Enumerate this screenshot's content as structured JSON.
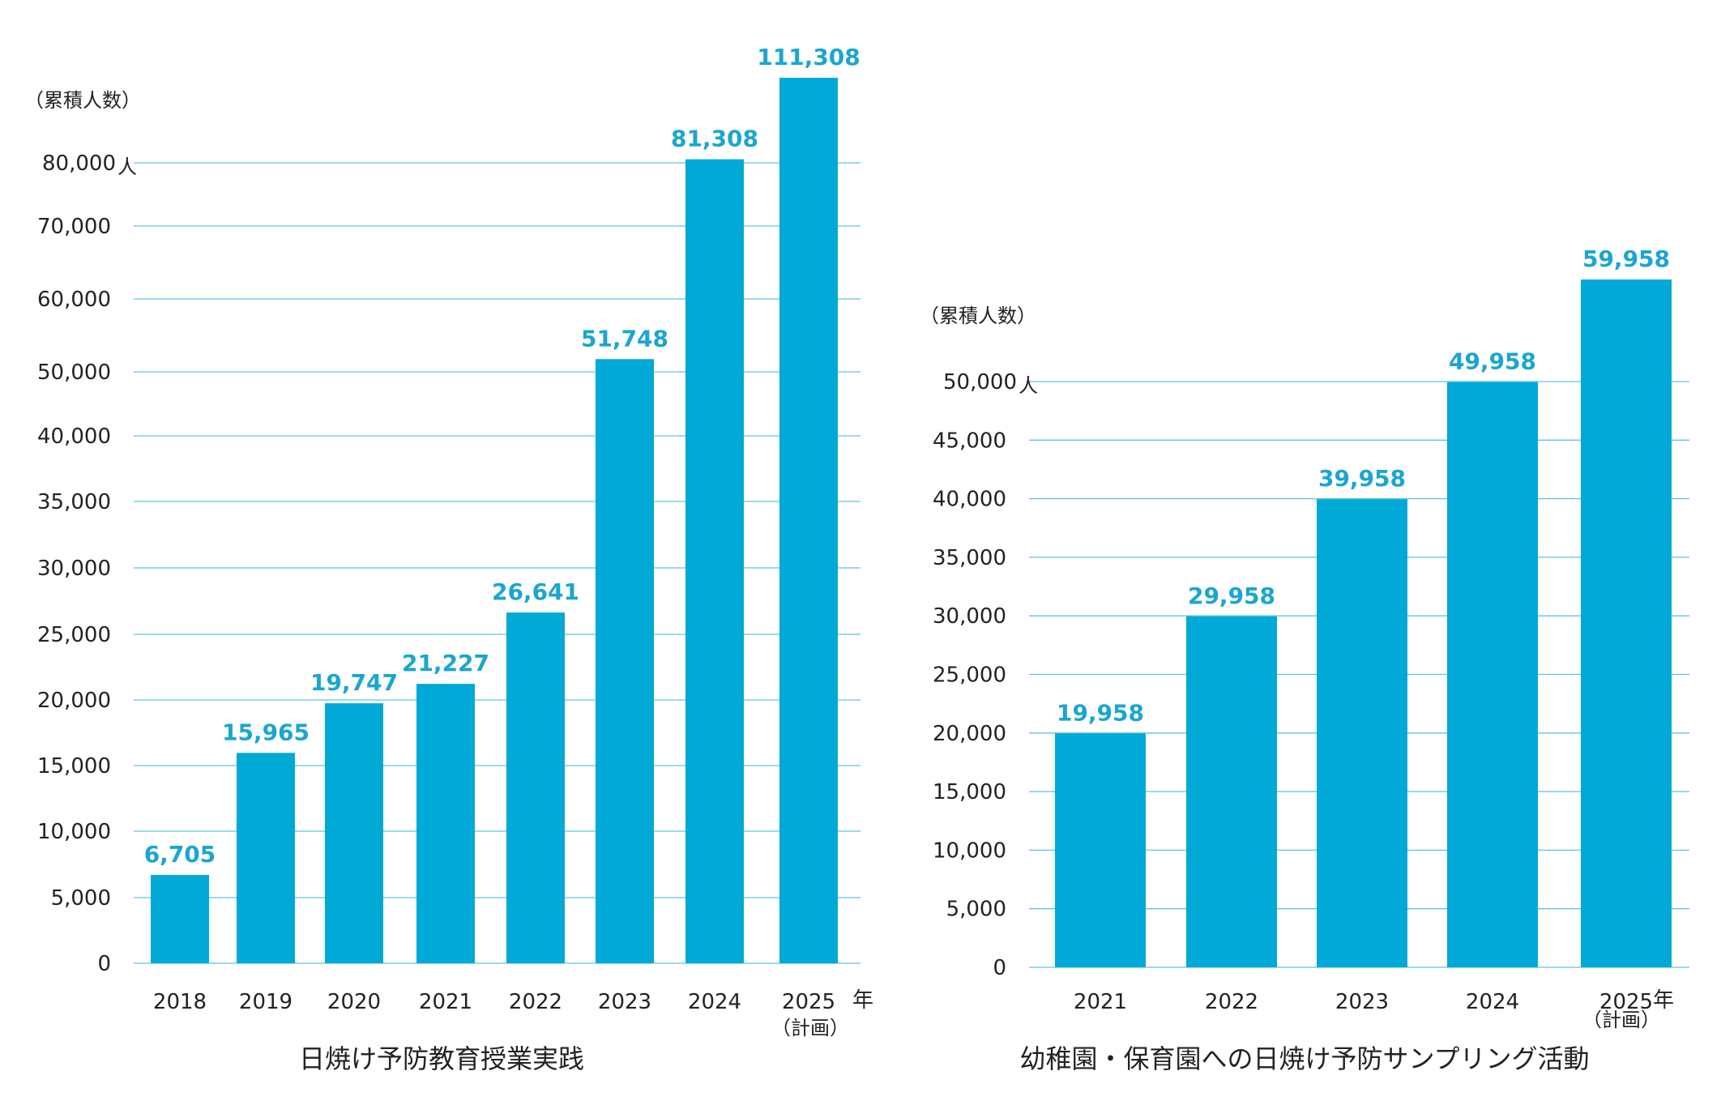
{
  "colors": {
    "bar": "#00A9D6",
    "label": "#1AA6D0",
    "grid": "#5FC3E0",
    "text": "#222222"
  },
  "chart_data": [
    {
      "type": "bar",
      "title": "日焼け予防教育授業実践",
      "ylabel": "（累積人数）",
      "unit_suffix": "人",
      "x_unit": "年",
      "x_note": "（計画）",
      "categories": [
        "2018",
        "2019",
        "2020",
        "2021",
        "2022",
        "2023",
        "2024",
        "2025"
      ],
      "values": [
        6705,
        15965,
        19747,
        21227,
        26641,
        51748,
        81308,
        111308
      ],
      "value_labels": [
        "6,705",
        "15,965",
        "19,747",
        "21,227",
        "26,641",
        "51,748",
        "81,308",
        "111,308"
      ],
      "yticks": [
        {
          "v": 0,
          "label": "0"
        },
        {
          "v": 5000,
          "label": "5,000"
        },
        {
          "v": 10000,
          "label": "10,000"
        },
        {
          "v": 15000,
          "label": "15,000"
        },
        {
          "v": 20000,
          "label": "20,000"
        },
        {
          "v": 25000,
          "label": "25,000"
        },
        {
          "v": 30000,
          "label": "30,000"
        },
        {
          "v": 35000,
          "label": "35,000"
        },
        {
          "v": 40000,
          "label": "40,000"
        },
        {
          "v": 50000,
          "label": "50,000"
        },
        {
          "v": 60000,
          "label": "60,000"
        },
        {
          "v": 70000,
          "label": "70,000"
        },
        {
          "v": 80000,
          "label": "80,000"
        }
      ],
      "axis_break": "scale compresses above 40,000; bar 2025 extends beyond the top gridline",
      "grid": true
    },
    {
      "type": "bar",
      "title": "幼稚園・保育園への日焼け予防サンプリング活動",
      "ylabel": "（累積人数）",
      "unit_suffix": "人",
      "x_unit": "年",
      "x_note": "（計画）",
      "categories": [
        "2021",
        "2022",
        "2023",
        "2024",
        "2025"
      ],
      "values": [
        19958,
        29958,
        39958,
        49958,
        59958
      ],
      "value_labels": [
        "19,958",
        "29,958",
        "39,958",
        "49,958",
        "59,958"
      ],
      "yticks": [
        {
          "v": 0,
          "label": "0"
        },
        {
          "v": 5000,
          "label": "5,000"
        },
        {
          "v": 10000,
          "label": "10,000"
        },
        {
          "v": 15000,
          "label": "15,000"
        },
        {
          "v": 20000,
          "label": "20,000"
        },
        {
          "v": 25000,
          "label": "25,000"
        },
        {
          "v": 30000,
          "label": "30,000"
        },
        {
          "v": 35000,
          "label": "35,000"
        },
        {
          "v": 40000,
          "label": "40,000"
        },
        {
          "v": 45000,
          "label": "45,000"
        },
        {
          "v": 50000,
          "label": "50,000"
        }
      ],
      "ylim": [
        0,
        50000
      ],
      "grid": true
    }
  ]
}
